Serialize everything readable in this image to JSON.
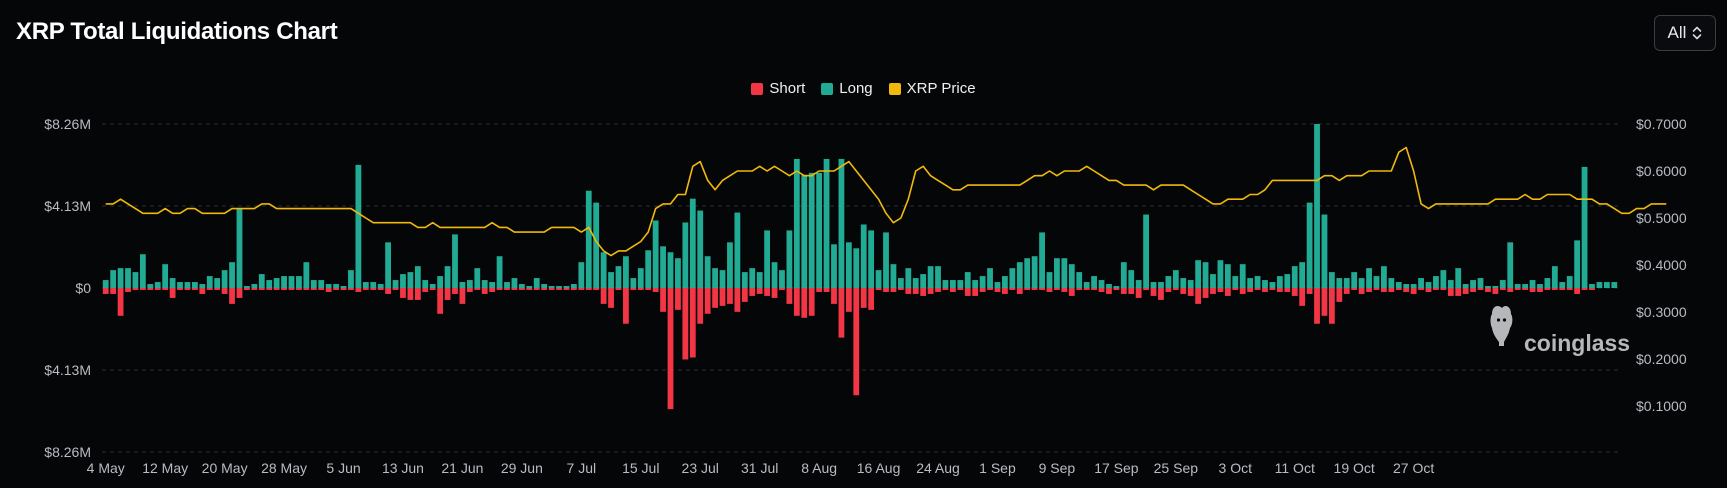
{
  "title": "XRP Total Liquidations Chart",
  "range_select": {
    "value": "All",
    "icon": "chevron-up-down-icon"
  },
  "watermark": "coinglass",
  "legend": [
    {
      "label": "Short",
      "color": "#f23645"
    },
    {
      "label": "Long",
      "color": "#22ab94"
    },
    {
      "label": "XRP Price",
      "color": "#f0b90b"
    }
  ],
  "chart_data": {
    "type": "bar",
    "title": "XRP Total Liquidations Chart",
    "left_axis": {
      "ticks": [
        "$8.26M",
        "$4.13M",
        "$0",
        "$4.13M",
        "$8.26M"
      ],
      "values": [
        8.26,
        4.13,
        0,
        -4.13,
        -8.26
      ],
      "range": [
        -8.26,
        8.26
      ],
      "unit": "USD millions"
    },
    "right_axis": {
      "ticks": [
        "$0.7000",
        "$0.6000",
        "$0.5000",
        "$0.4000",
        "$0.3000",
        "$0.2000",
        "$0.1000"
      ],
      "values": [
        0.7,
        0.6,
        0.5,
        0.4,
        0.3,
        0.2,
        0.1
      ],
      "range": [
        0.0,
        0.7
      ]
    },
    "x_ticks": [
      {
        "label": "4 May",
        "day": 0
      },
      {
        "label": "12 May",
        "day": 8
      },
      {
        "label": "20 May",
        "day": 16
      },
      {
        "label": "28 May",
        "day": 24
      },
      {
        "label": "5 Jun",
        "day": 32
      },
      {
        "label": "13 Jun",
        "day": 40
      },
      {
        "label": "21 Jun",
        "day": 48
      },
      {
        "label": "29 Jun",
        "day": 56
      },
      {
        "label": "7 Jul",
        "day": 64
      },
      {
        "label": "15 Jul",
        "day": 72
      },
      {
        "label": "23 Jul",
        "day": 80
      },
      {
        "label": "31 Jul",
        "day": 88
      },
      {
        "label": "8 Aug",
        "day": 96
      },
      {
        "label": "16 Aug",
        "day": 104
      },
      {
        "label": "24 Aug",
        "day": 112
      },
      {
        "label": "1 Sep",
        "day": 120
      },
      {
        "label": "9 Sep",
        "day": 128
      },
      {
        "label": "17 Sep",
        "day": 136
      },
      {
        "label": "25 Sep",
        "day": 144
      },
      {
        "label": "3 Oct",
        "day": 152
      },
      {
        "label": "11 Oct",
        "day": 160
      },
      {
        "label": "19 Oct",
        "day": 168
      },
      {
        "label": "27 Oct",
        "day": 176
      }
    ],
    "series": [
      {
        "name": "Long",
        "unit": "USD millions",
        "values": [
          0.4,
          0.9,
          1.0,
          1.0,
          0.8,
          1.7,
          0.2,
          0.3,
          1.2,
          0.5,
          0.3,
          0.3,
          0.3,
          0.2,
          0.6,
          0.5,
          0.9,
          1.3,
          4.0,
          0.1,
          0.2,
          0.7,
          0.4,
          0.5,
          0.6,
          0.6,
          0.6,
          1.3,
          0.4,
          0.4,
          0.2,
          0.2,
          0.1,
          0.9,
          6.2,
          0.3,
          0.3,
          0.2,
          2.3,
          0.4,
          0.7,
          0.8,
          1.1,
          0.4,
          0.2,
          0.6,
          1.1,
          2.7,
          0.3,
          0.4,
          1.0,
          0.4,
          0.3,
          1.6,
          0.3,
          0.5,
          0.2,
          0.1,
          0.5,
          0.2,
          0.1,
          0.1,
          0.1,
          0.2,
          1.3,
          4.9,
          4.3,
          1.8,
          0.8,
          1.1,
          1.6,
          0.5,
          1.0,
          1.9,
          3.4,
          2.1,
          1.8,
          1.5,
          3.3,
          4.5,
          3.9,
          1.6,
          1.0,
          0.9,
          2.3,
          3.8,
          0.8,
          1.0,
          0.8,
          2.9,
          1.3,
          0.9,
          2.9,
          6.5,
          5.7,
          5.8,
          5.8,
          6.5,
          2.2,
          6.5,
          2.3,
          2.0,
          3.2,
          2.9,
          0.9,
          2.8,
          1.2,
          0.5,
          1.0,
          0.5,
          0.7,
          1.1,
          1.1,
          0.4,
          0.4,
          0.4,
          0.8,
          0.4,
          0.6,
          1.0,
          0.3,
          0.6,
          1.0,
          1.3,
          1.5,
          1.6,
          2.8,
          0.8,
          1.5,
          1.5,
          1.2,
          0.8,
          0.3,
          0.6,
          0.4,
          0.2,
          0.1,
          1.3,
          0.9,
          0.4,
          3.7,
          0.3,
          0.3,
          0.6,
          0.9,
          0.5,
          0.4,
          1.4,
          1.3,
          0.7,
          1.4,
          1.2,
          0.6,
          1.2,
          0.5,
          0.6,
          0.4,
          0.3,
          0.6,
          0.7,
          1.1,
          1.3,
          4.3,
          8.26,
          3.7,
          0.8,
          0.5,
          0.5,
          0.8,
          0.5,
          1.0,
          0.6,
          1.1,
          0.5,
          0.3,
          0.2,
          0.2,
          0.5,
          0.3,
          0.6,
          0.9,
          0.4,
          1.0,
          0.2,
          0.4,
          0.5,
          0.1,
          0.1,
          0.4,
          2.3,
          0.2,
          0.2,
          0.4,
          0.2,
          0.5,
          1.1,
          0.3,
          0.6,
          2.4,
          6.1,
          0.2,
          0.3,
          0.3,
          0.3
        ]
      },
      {
        "name": "Short",
        "unit": "USD millions",
        "values": [
          0.3,
          0.3,
          1.4,
          0.2,
          0.1,
          0.1,
          0.1,
          0.1,
          0.1,
          0.5,
          0.1,
          0.1,
          0.1,
          0.3,
          0.1,
          0.1,
          0.3,
          0.8,
          0.5,
          0.1,
          0.1,
          0.1,
          0.1,
          0.1,
          0.1,
          0.1,
          0.1,
          0.1,
          0.1,
          0.1,
          0.2,
          0.1,
          0.1,
          0.1,
          0.2,
          0.1,
          0.1,
          0.1,
          0.3,
          0.1,
          0.5,
          0.6,
          0.6,
          0.2,
          0.1,
          1.3,
          0.6,
          0.3,
          0.8,
          0.2,
          0.1,
          0.3,
          0.2,
          0.1,
          0.1,
          0.1,
          0.1,
          0.1,
          0.1,
          0.1,
          0.1,
          0.1,
          0.1,
          0.1,
          0.1,
          0.1,
          0.1,
          0.8,
          1.0,
          0.1,
          1.8,
          0.1,
          0.1,
          0.1,
          0.2,
          1.2,
          6.1,
          1.1,
          3.6,
          3.5,
          1.8,
          1.3,
          1.0,
          0.9,
          0.8,
          1.2,
          0.7,
          0.4,
          0.3,
          0.4,
          0.5,
          0.1,
          0.8,
          1.4,
          1.5,
          1.4,
          0.2,
          0.2,
          0.8,
          2.5,
          1.2,
          5.4,
          1.0,
          1.1,
          0.1,
          0.2,
          0.2,
          0.1,
          0.3,
          0.3,
          0.4,
          0.3,
          0.2,
          0.1,
          0.2,
          0.1,
          0.4,
          0.4,
          0.2,
          0.1,
          0.2,
          0.3,
          0.1,
          0.3,
          0.1,
          0.1,
          0.1,
          0.2,
          0.1,
          0.2,
          0.4,
          0.1,
          0.1,
          0.1,
          0.2,
          0.3,
          0.1,
          0.3,
          0.3,
          0.5,
          0.1,
          0.4,
          0.6,
          0.2,
          0.1,
          0.3,
          0.4,
          0.8,
          0.5,
          0.3,
          0.2,
          0.4,
          0.1,
          0.3,
          0.2,
          0.1,
          0.2,
          0.1,
          0.2,
          0.2,
          0.4,
          0.9,
          0.3,
          1.8,
          1.4,
          1.8,
          0.7,
          0.3,
          0.1,
          0.3,
          0.2,
          0.1,
          0.2,
          0.2,
          0.1,
          0.2,
          0.3,
          0.1,
          0.2,
          0.1,
          0.1,
          0.4,
          0.4,
          0.3,
          0.2,
          0.1,
          0.2,
          0.3,
          0.1,
          0.2,
          0.1,
          0.1,
          0.2,
          0.2,
          0.1,
          0.1,
          0.1,
          0.1,
          0.3,
          0.1,
          0.1
        ]
      },
      {
        "name": "XRP Price",
        "unit": "USD",
        "values": [
          0.53,
          0.53,
          0.54,
          0.53,
          0.52,
          0.51,
          0.51,
          0.51,
          0.52,
          0.51,
          0.51,
          0.52,
          0.52,
          0.51,
          0.51,
          0.51,
          0.51,
          0.52,
          0.52,
          0.52,
          0.52,
          0.53,
          0.53,
          0.52,
          0.52,
          0.52,
          0.52,
          0.52,
          0.52,
          0.52,
          0.52,
          0.52,
          0.52,
          0.52,
          0.51,
          0.5,
          0.49,
          0.49,
          0.49,
          0.49,
          0.49,
          0.49,
          0.48,
          0.48,
          0.49,
          0.48,
          0.48,
          0.48,
          0.48,
          0.48,
          0.48,
          0.48,
          0.49,
          0.48,
          0.48,
          0.47,
          0.47,
          0.47,
          0.47,
          0.47,
          0.48,
          0.48,
          0.48,
          0.48,
          0.47,
          0.48,
          0.45,
          0.43,
          0.42,
          0.43,
          0.43,
          0.44,
          0.45,
          0.47,
          0.52,
          0.53,
          0.53,
          0.55,
          0.55,
          0.61,
          0.62,
          0.58,
          0.56,
          0.58,
          0.59,
          0.6,
          0.6,
          0.6,
          0.61,
          0.6,
          0.61,
          0.6,
          0.59,
          0.6,
          0.59,
          0.59,
          0.6,
          0.6,
          0.6,
          0.61,
          0.62,
          0.6,
          0.58,
          0.56,
          0.54,
          0.51,
          0.49,
          0.5,
          0.54,
          0.6,
          0.61,
          0.59,
          0.58,
          0.57,
          0.56,
          0.56,
          0.57,
          0.57,
          0.57,
          0.57,
          0.57,
          0.57,
          0.57,
          0.57,
          0.58,
          0.59,
          0.59,
          0.6,
          0.59,
          0.6,
          0.6,
          0.6,
          0.61,
          0.6,
          0.59,
          0.58,
          0.58,
          0.57,
          0.57,
          0.57,
          0.57,
          0.56,
          0.57,
          0.57,
          0.57,
          0.57,
          0.56,
          0.55,
          0.54,
          0.53,
          0.53,
          0.54,
          0.54,
          0.54,
          0.55,
          0.55,
          0.56,
          0.58,
          0.58,
          0.58,
          0.58,
          0.58,
          0.58,
          0.58,
          0.59,
          0.59,
          0.58,
          0.59,
          0.59,
          0.59,
          0.6,
          0.6,
          0.6,
          0.6,
          0.64,
          0.65,
          0.6,
          0.53,
          0.52,
          0.53,
          0.53,
          0.53,
          0.53,
          0.53,
          0.53,
          0.53,
          0.53,
          0.54,
          0.54,
          0.54,
          0.54,
          0.55,
          0.54,
          0.54,
          0.55,
          0.55,
          0.55,
          0.55,
          0.54,
          0.54,
          0.54,
          0.53,
          0.53,
          0.52,
          0.51,
          0.51,
          0.52,
          0.52,
          0.53,
          0.53,
          0.53
        ]
      }
    ]
  }
}
